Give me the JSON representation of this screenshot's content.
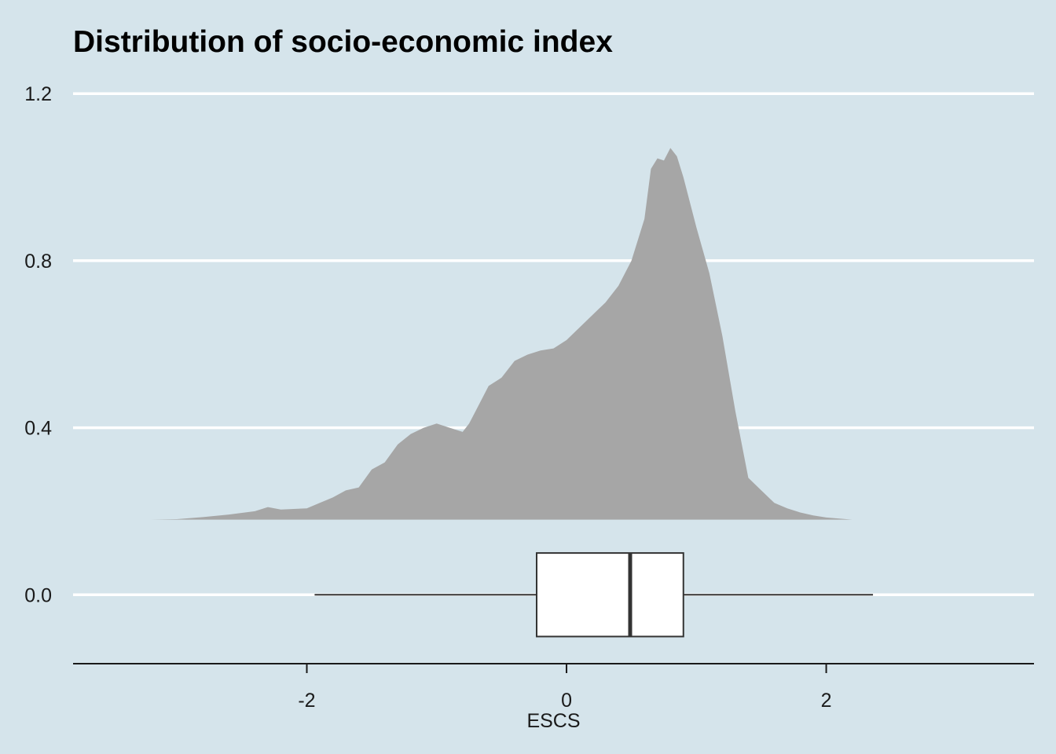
{
  "chart_data": {
    "type": "area",
    "title": "Distribution of socio-economic index",
    "xlabel": "ESCS",
    "ylabel": "",
    "xlim": [
      -3.8,
      3.6
    ],
    "ylim": [
      -0.165,
      1.255
    ],
    "x_ticks": [
      -2,
      0,
      2
    ],
    "x_tick_labels": [
      "-2",
      "0",
      "2"
    ],
    "y_ticks": [
      0.0,
      0.4,
      0.8,
      1.2
    ],
    "y_tick_labels": [
      "0.0",
      "0.4",
      "0.8",
      "1.2"
    ],
    "grid": "horizontal major lines",
    "colors": {
      "background": "#d5e4eb",
      "density_fill": "#a6a6a6",
      "grid": "#ffffff",
      "box_fill": "#ffffff",
      "box_stroke": "#333333"
    },
    "density": {
      "baseline": 0.18,
      "x": [
        -3.2,
        -3.0,
        -2.8,
        -2.6,
        -2.4,
        -2.3,
        -2.2,
        -2.0,
        -1.9,
        -1.8,
        -1.7,
        -1.6,
        -1.5,
        -1.4,
        -1.3,
        -1.2,
        -1.1,
        -1.0,
        -0.9,
        -0.8,
        -0.75,
        -0.7,
        -0.6,
        -0.5,
        -0.4,
        -0.3,
        -0.2,
        -0.1,
        0.0,
        0.1,
        0.2,
        0.3,
        0.4,
        0.5,
        0.6,
        0.65,
        0.7,
        0.75,
        0.8,
        0.85,
        0.9,
        1.0,
        1.1,
        1.2,
        1.3,
        1.4,
        1.5,
        1.6,
        1.7,
        1.8,
        1.9,
        2.0,
        2.2,
        2.4
      ],
      "y": [
        0.18,
        0.181,
        0.186,
        0.192,
        0.2,
        0.21,
        0.204,
        0.207,
        0.22,
        0.233,
        0.25,
        0.257,
        0.3,
        0.317,
        0.36,
        0.385,
        0.4,
        0.41,
        0.4,
        0.39,
        0.41,
        0.44,
        0.5,
        0.52,
        0.56,
        0.575,
        0.585,
        0.59,
        0.61,
        0.64,
        0.67,
        0.7,
        0.74,
        0.8,
        0.9,
        1.02,
        1.045,
        1.04,
        1.07,
        1.05,
        1.0,
        0.88,
        0.77,
        0.62,
        0.44,
        0.28,
        0.25,
        0.22,
        0.207,
        0.197,
        0.19,
        0.185,
        0.18,
        0.18
      ]
    },
    "boxplot": {
      "whisker_low": -1.94,
      "q1": -0.23,
      "median": 0.49,
      "q3": 0.9,
      "whisker_high": 2.36,
      "y_center": 0.0,
      "half_height": 0.1
    }
  }
}
